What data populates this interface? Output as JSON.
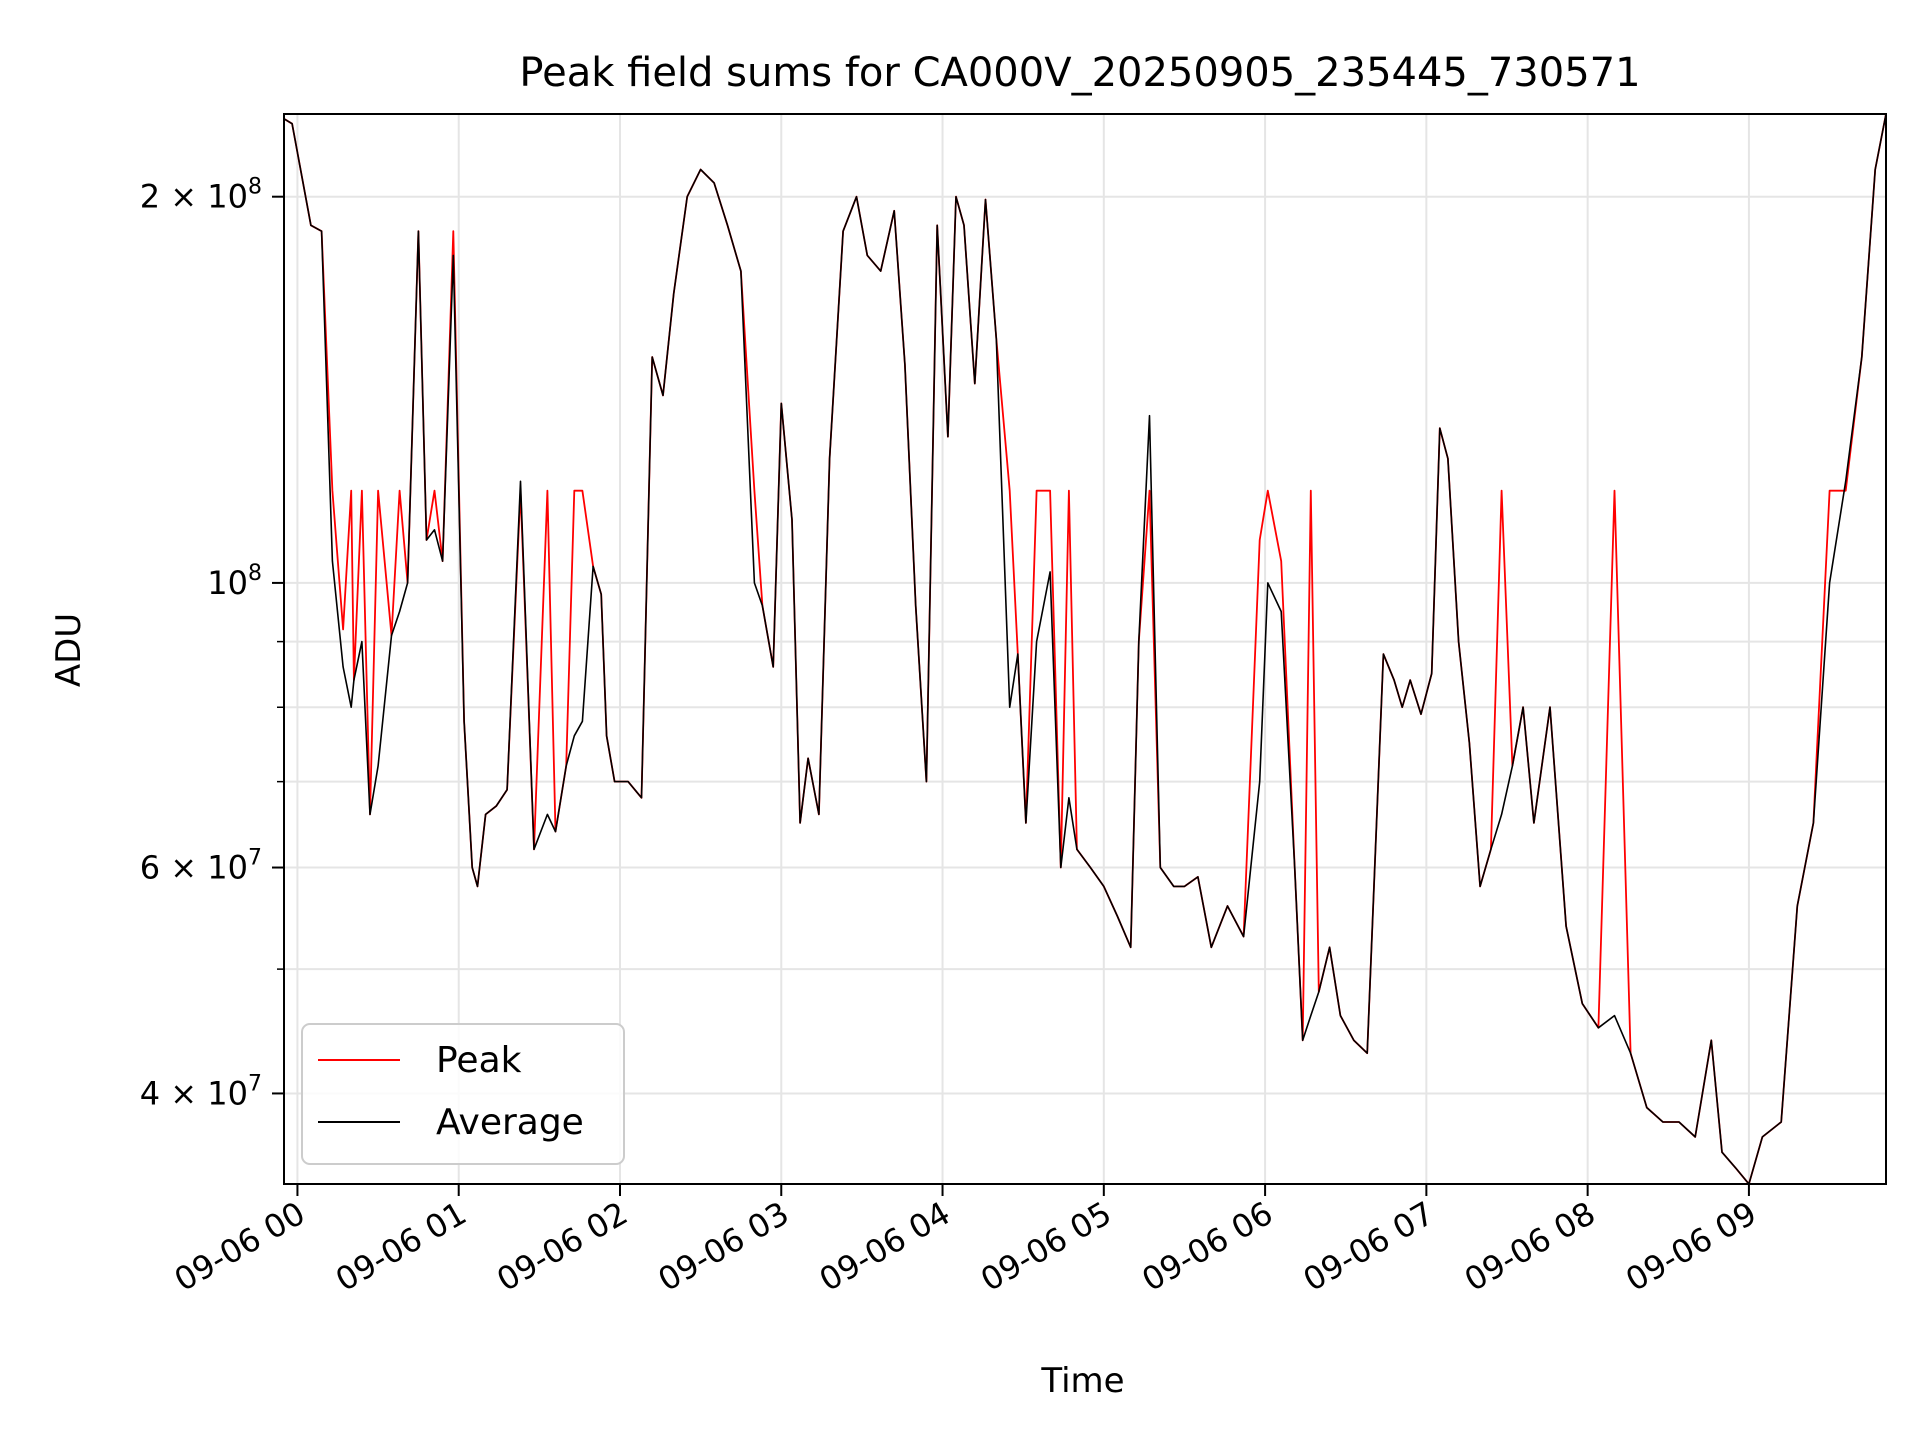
{
  "chart_data": {
    "type": "line",
    "title": "Peak field sums for CA000V_20250905_235445_730571",
    "xlabel": "Time",
    "ylabel": "ADU",
    "y_scale": "log",
    "grid": true,
    "legend_position": "lower-left",
    "xlim": [
      "09-05 23:55",
      "09-06 09:51"
    ],
    "ylim": [
      34000000,
      232000000
    ],
    "x_ticks": [
      "09-06 00",
      "09-06 01",
      "09-06 02",
      "09-06 03",
      "09-06 04",
      "09-06 05",
      "09-06 06",
      "09-06 07",
      "09-06 08",
      "09-06 09"
    ],
    "y_ticks": [
      {
        "value": 40000000,
        "mantissa": "4",
        "exp": "7"
      },
      {
        "value": 60000000,
        "mantissa": "6",
        "exp": "7"
      },
      {
        "value": 100000000,
        "mantissa": "",
        "exp": "8"
      },
      {
        "value": 200000000,
        "mantissa": "2",
        "exp": "8"
      }
    ],
    "colors": {
      "peak": "#ff0000",
      "average": "#000000"
    },
    "series": [
      {
        "name": "Peak",
        "color": "#ff0000",
        "x": [
          "09-05 23:55",
          "09-05 23:58",
          "09-06 00:05",
          "09-06 00:09",
          "09-06 00:13",
          "09-06 00:17",
          "09-06 00:20",
          "09-06 00:21",
          "09-06 00:24",
          "09-06 00:27",
          "09-06 00:30",
          "09-06 00:35",
          "09-06 00:38",
          "09-06 00:41",
          "09-06 00:45",
          "09-06 00:48",
          "09-06 00:51",
          "09-06 00:54",
          "09-06 00:58",
          "09-06 01:02",
          "09-06 01:05",
          "09-06 01:07",
          "09-06 01:10",
          "09-06 01:14",
          "09-06 01:18",
          "09-06 01:23",
          "09-06 01:28",
          "09-06 01:33",
          "09-06 01:36",
          "09-06 01:40",
          "09-06 01:43",
          "09-06 01:46",
          "09-06 01:50",
          "09-06 01:53",
          "09-06 01:55",
          "09-06 01:58",
          "09-06 02:03",
          "09-06 02:08",
          "09-06 02:12",
          "09-06 02:16",
          "09-06 02:20",
          "09-06 02:25",
          "09-06 02:30",
          "09-06 02:35",
          "09-06 02:40",
          "09-06 02:45",
          "09-06 02:50",
          "09-06 02:53",
          "09-06 02:57",
          "09-06 03:00",
          "09-06 03:04",
          "09-06 03:07",
          "09-06 03:10",
          "09-06 03:14",
          "09-06 03:18",
          "09-06 03:23",
          "09-06 03:28",
          "09-06 03:32",
          "09-06 03:37",
          "09-06 03:42",
          "09-06 03:46",
          "09-06 03:50",
          "09-06 03:54",
          "09-06 03:58",
          "09-06 04:02",
          "09-06 04:05",
          "09-06 04:08",
          "09-06 04:12",
          "09-06 04:16",
          "09-06 04:20",
          "09-06 04:25",
          "09-06 04:28",
          "09-06 04:31",
          "09-06 04:35",
          "09-06 04:40",
          "09-06 04:44",
          "09-06 04:47",
          "09-06 04:50",
          "09-06 04:55",
          "09-06 05:00",
          "09-06 05:05",
          "09-06 05:10",
          "09-06 05:13",
          "09-06 05:17",
          "09-06 05:21",
          "09-06 05:26",
          "09-06 05:30",
          "09-06 05:35",
          "09-06 05:40",
          "09-06 05:46",
          "09-06 05:52",
          "09-06 05:58",
          "09-06 06:01",
          "09-06 06:06",
          "09-06 06:11",
          "09-06 06:14",
          "09-06 06:17",
          "09-06 06:20",
          "09-06 06:24",
          "09-06 06:28",
          "09-06 06:33",
          "09-06 06:38",
          "09-06 06:44",
          "09-06 06:48",
          "09-06 06:51",
          "09-06 06:54",
          "09-06 06:58",
          "09-06 07:02",
          "09-06 07:05",
          "09-06 07:08",
          "09-06 07:12",
          "09-06 07:16",
          "09-06 07:20",
          "09-06 07:24",
          "09-06 07:28",
          "09-06 07:32",
          "09-06 07:36",
          "09-06 07:40",
          "09-06 07:46",
          "09-06 07:52",
          "09-06 07:58",
          "09-06 08:04",
          "09-06 08:10",
          "09-06 08:16",
          "09-06 08:22",
          "09-06 08:28",
          "09-06 08:34",
          "09-06 08:40",
          "09-06 08:46",
          "09-06 08:50",
          "09-06 08:55",
          "09-06 09:00",
          "09-06 09:05",
          "09-06 09:12",
          "09-06 09:18",
          "09-06 09:24",
          "09-06 09:30",
          "09-06 09:36",
          "09-06 09:42",
          "09-06 09:47",
          "09-06 09:51"
        ],
        "values": [
          230000000,
          228000000,
          190000000,
          188000000,
          118000000,
          92000000,
          118000000,
          84000000,
          118000000,
          66000000,
          118000000,
          91000000,
          118000000,
          100000000,
          188000000,
          108000000,
          118000000,
          104000000,
          188000000,
          78000000,
          60000000,
          58000000,
          66000000,
          67000000,
          69000000,
          118000000,
          62000000,
          118000000,
          64000000,
          72000000,
          118000000,
          118000000,
          103000000,
          98000000,
          76000000,
          70000000,
          70000000,
          68000000,
          150000000,
          140000000,
          168000000,
          200000000,
          210000000,
          205000000,
          190000000,
          175000000,
          118000000,
          96000000,
          86000000,
          138000000,
          112000000,
          65000000,
          73000000,
          66000000,
          125000000,
          188000000,
          200000000,
          180000000,
          175000000,
          195000000,
          148000000,
          96000000,
          70000000,
          190000000,
          130000000,
          200000000,
          190000000,
          143000000,
          199000000,
          155000000,
          118000000,
          88000000,
          65000000,
          118000000,
          118000000,
          60000000,
          118000000,
          62000000,
          60000000,
          58000000,
          55000000,
          52000000,
          90000000,
          118000000,
          60000000,
          58000000,
          58000000,
          59000000,
          52000000,
          56000000,
          53000000,
          108000000,
          118000000,
          104000000,
          60000000,
          44000000,
          118000000,
          48000000,
          52000000,
          46000000,
          44000000,
          43000000,
          88000000,
          84000000,
          80000000,
          84000000,
          79000000,
          85000000,
          132000000,
          125000000,
          90000000,
          75000000,
          58000000,
          62000000,
          118000000,
          72000000,
          80000000,
          65000000,
          80000000,
          54000000,
          47000000,
          45000000,
          118000000,
          43000000,
          39000000,
          38000000,
          38000000,
          37000000,
          44000000,
          36000000,
          35000000,
          34000000,
          37000000,
          38000000,
          56000000,
          65000000,
          118000000,
          118000000,
          150000000,
          210000000,
          232000000
        ]
      },
      {
        "name": "Average",
        "color": "#000000",
        "x": [
          "09-05 23:55",
          "09-05 23:58",
          "09-06 00:05",
          "09-06 00:09",
          "09-06 00:13",
          "09-06 00:17",
          "09-06 00:20",
          "09-06 00:21",
          "09-06 00:24",
          "09-06 00:27",
          "09-06 00:30",
          "09-06 00:35",
          "09-06 00:38",
          "09-06 00:41",
          "09-06 00:45",
          "09-06 00:48",
          "09-06 00:51",
          "09-06 00:54",
          "09-06 00:58",
          "09-06 01:02",
          "09-06 01:05",
          "09-06 01:07",
          "09-06 01:10",
          "09-06 01:14",
          "09-06 01:18",
          "09-06 01:23",
          "09-06 01:28",
          "09-06 01:33",
          "09-06 01:36",
          "09-06 01:40",
          "09-06 01:43",
          "09-06 01:46",
          "09-06 01:50",
          "09-06 01:53",
          "09-06 01:55",
          "09-06 01:58",
          "09-06 02:03",
          "09-06 02:08",
          "09-06 02:12",
          "09-06 02:16",
          "09-06 02:20",
          "09-06 02:25",
          "09-06 02:30",
          "09-06 02:35",
          "09-06 02:40",
          "09-06 02:45",
          "09-06 02:50",
          "09-06 02:53",
          "09-06 02:57",
          "09-06 03:00",
          "09-06 03:04",
          "09-06 03:07",
          "09-06 03:10",
          "09-06 03:14",
          "09-06 03:18",
          "09-06 03:23",
          "09-06 03:28",
          "09-06 03:32",
          "09-06 03:37",
          "09-06 03:42",
          "09-06 03:46",
          "09-06 03:50",
          "09-06 03:54",
          "09-06 03:58",
          "09-06 04:02",
          "09-06 04:05",
          "09-06 04:08",
          "09-06 04:12",
          "09-06 04:16",
          "09-06 04:20",
          "09-06 04:25",
          "09-06 04:28",
          "09-06 04:31",
          "09-06 04:35",
          "09-06 04:40",
          "09-06 04:44",
          "09-06 04:47",
          "09-06 04:50",
          "09-06 04:55",
          "09-06 05:00",
          "09-06 05:05",
          "09-06 05:10",
          "09-06 05:13",
          "09-06 05:17",
          "09-06 05:21",
          "09-06 05:26",
          "09-06 05:30",
          "09-06 05:35",
          "09-06 05:40",
          "09-06 05:46",
          "09-06 05:52",
          "09-06 05:58",
          "09-06 06:01",
          "09-06 06:06",
          "09-06 06:11",
          "09-06 06:14",
          "09-06 06:17",
          "09-06 06:20",
          "09-06 06:24",
          "09-06 06:28",
          "09-06 06:33",
          "09-06 06:38",
          "09-06 06:44",
          "09-06 06:48",
          "09-06 06:51",
          "09-06 06:54",
          "09-06 06:58",
          "09-06 07:02",
          "09-06 07:05",
          "09-06 07:08",
          "09-06 07:12",
          "09-06 07:16",
          "09-06 07:20",
          "09-06 07:24",
          "09-06 07:28",
          "09-06 07:32",
          "09-06 07:36",
          "09-06 07:40",
          "09-06 07:46",
          "09-06 07:52",
          "09-06 07:58",
          "09-06 08:04",
          "09-06 08:10",
          "09-06 08:16",
          "09-06 08:22",
          "09-06 08:28",
          "09-06 08:34",
          "09-06 08:40",
          "09-06 08:46",
          "09-06 08:50",
          "09-06 08:55",
          "09-06 09:00",
          "09-06 09:05",
          "09-06 09:12",
          "09-06 09:18",
          "09-06 09:24",
          "09-06 09:30",
          "09-06 09:36",
          "09-06 09:42",
          "09-06 09:47",
          "09-06 09:51"
        ],
        "values": [
          230000000,
          228000000,
          190000000,
          188000000,
          104000000,
          86000000,
          80000000,
          84000000,
          90000000,
          66000000,
          72000000,
          91000000,
          95000000,
          100000000,
          188000000,
          108000000,
          110000000,
          104000000,
          180000000,
          78000000,
          60000000,
          58000000,
          66000000,
          67000000,
          69000000,
          120000000,
          62000000,
          66000000,
          64000000,
          72000000,
          76000000,
          78000000,
          103000000,
          98000000,
          76000000,
          70000000,
          70000000,
          68000000,
          150000000,
          140000000,
          168000000,
          200000000,
          210000000,
          205000000,
          190000000,
          175000000,
          100000000,
          96000000,
          86000000,
          138000000,
          112000000,
          65000000,
          73000000,
          66000000,
          125000000,
          188000000,
          200000000,
          180000000,
          175000000,
          195000000,
          148000000,
          96000000,
          70000000,
          190000000,
          130000000,
          200000000,
          190000000,
          143000000,
          199000000,
          155000000,
          80000000,
          88000000,
          65000000,
          90000000,
          102000000,
          60000000,
          68000000,
          62000000,
          60000000,
          58000000,
          55000000,
          52000000,
          90000000,
          135000000,
          60000000,
          58000000,
          58000000,
          59000000,
          52000000,
          56000000,
          53000000,
          70000000,
          100000000,
          95000000,
          60000000,
          44000000,
          46000000,
          48000000,
          52000000,
          46000000,
          44000000,
          43000000,
          88000000,
          84000000,
          80000000,
          84000000,
          79000000,
          85000000,
          132000000,
          125000000,
          90000000,
          75000000,
          58000000,
          62000000,
          66000000,
          72000000,
          80000000,
          65000000,
          80000000,
          54000000,
          47000000,
          45000000,
          46000000,
          43000000,
          39000000,
          38000000,
          38000000,
          37000000,
          44000000,
          36000000,
          35000000,
          34000000,
          37000000,
          38000000,
          56000000,
          65000000,
          100000000,
          120000000,
          150000000,
          210000000,
          232000000
        ]
      }
    ]
  }
}
